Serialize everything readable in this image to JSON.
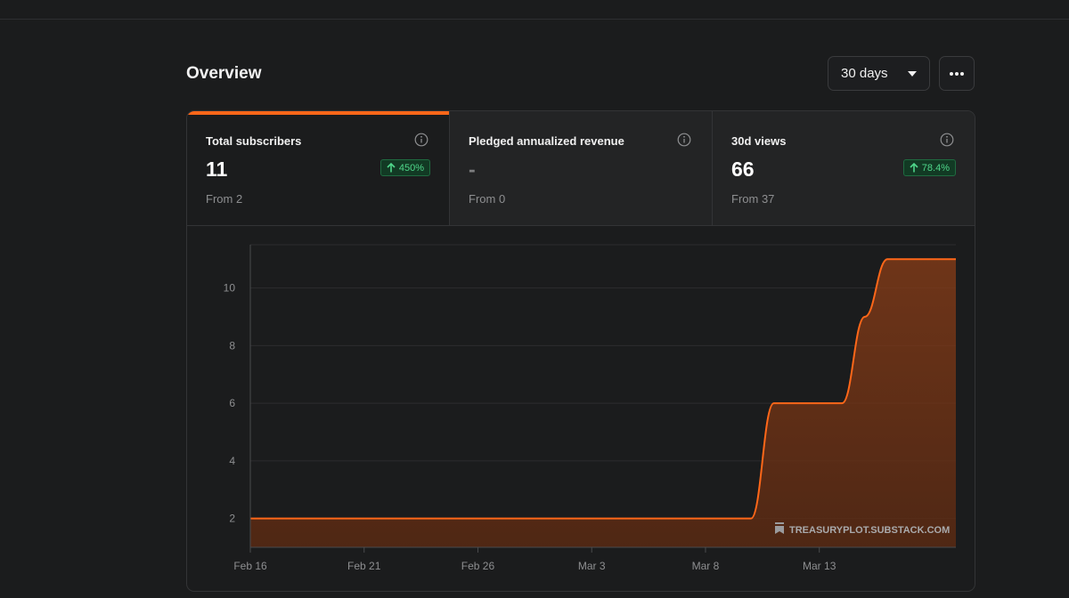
{
  "page": {
    "title": "Overview"
  },
  "controls": {
    "range_label": "30 days"
  },
  "stats": [
    {
      "label": "Total subscribers",
      "value": "11",
      "from": "From 2",
      "delta": "450%",
      "active": true
    },
    {
      "label": "Pledged annualized revenue",
      "value": "-",
      "from": "From 0",
      "delta": ""
    },
    {
      "label": "30d views",
      "value": "66",
      "from": "From 37",
      "delta": "78.4%"
    }
  ],
  "colors": {
    "accent": "#ff6719",
    "positive": "#4fd68a"
  },
  "watermark": "TREASURYPLOT.SUBSTACK.COM",
  "chart_data": {
    "type": "area",
    "x_tick_labels": [
      "Feb 16",
      "Feb 21",
      "Feb 26",
      "Mar 3",
      "Mar 8",
      "Mar 13"
    ],
    "y_tick_labels": [
      "2",
      "4",
      "6",
      "8",
      "10"
    ],
    "ylim": [
      1,
      11.5
    ],
    "x": [
      "Feb 16",
      "Mar 9",
      "Mar 10",
      "Mar 11",
      "Mar 12",
      "Mar 13",
      "Mar 14",
      "Mar 15",
      "Mar 16",
      "Mar 17",
      "Mar 18"
    ],
    "series": [
      {
        "values": [
          2,
          2,
          2,
          6,
          6,
          6,
          6,
          9,
          11,
          11,
          11
        ]
      }
    ],
    "grid": true
  }
}
